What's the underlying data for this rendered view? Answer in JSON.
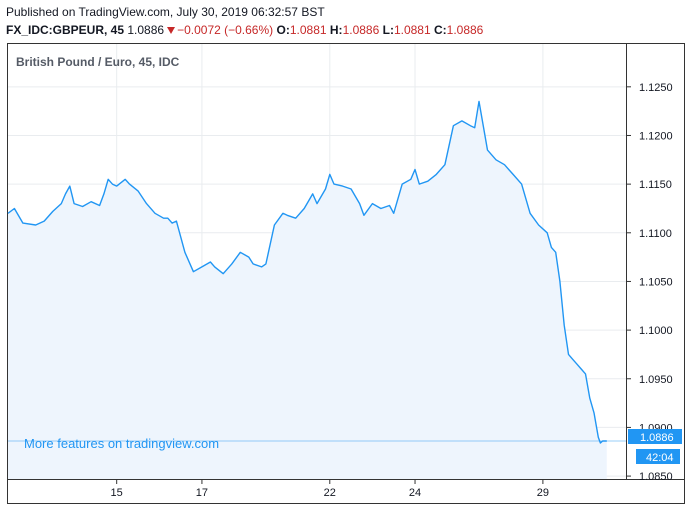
{
  "header": {
    "published": "Published on TradingView.com, July 30, 2019 06:32:57 BST",
    "symbol": "FX_IDC:GBPEUR, 45",
    "last": "1.0886",
    "change": "−0.0072 (−0.66%)",
    "o_label": "O:",
    "o_value": "1.0881",
    "h_label": "H:",
    "h_value": "1.0886",
    "l_label": "L:",
    "l_value": "1.0881",
    "c_label": "C:",
    "c_value": "1.0886"
  },
  "watermark": "More features on tradingview.com",
  "price_tag": "1.0886",
  "countdown_tag": "42:04",
  "colors": {
    "line": "#2196f3",
    "area": "#eef5fd",
    "down": "#c62828",
    "grid": "#e9ecef"
  },
  "chart_data": {
    "type": "area",
    "title": "British Pound / Euro, 45, IDC",
    "x_unit": "trading days since Jul 12, 2019",
    "x_ticks": [
      {
        "x": 2.3,
        "label": "15"
      },
      {
        "x": 4.3,
        "label": "17"
      },
      {
        "x": 7.3,
        "label": "22"
      },
      {
        "x": 9.3,
        "label": "24"
      },
      {
        "x": 12.3,
        "label": "29"
      }
    ],
    "y_ticks": [
      1.085,
      1.09,
      1.095,
      1.1,
      1.105,
      1.11,
      1.115,
      1.12,
      1.125
    ],
    "y_tick_labels": [
      "1.0850",
      "1.0900",
      "1.0950",
      "1.1000",
      "1.1050",
      "1.1100",
      "1.1150",
      "1.1200",
      "1.1250"
    ],
    "xlim": [
      -0.25,
      14.25
    ],
    "ylim": [
      1.0847,
      1.1294
    ],
    "last_value": 1.0886,
    "series": [
      {
        "name": "GBPEUR",
        "x": [
          -0.25,
          -0.1,
          0.1,
          0.4,
          0.6,
          0.8,
          1.0,
          1.1,
          1.2,
          1.3,
          1.5,
          1.7,
          1.9,
          2.0,
          2.1,
          2.2,
          2.3,
          2.5,
          2.6,
          2.8,
          3.0,
          3.2,
          3.4,
          3.5,
          3.6,
          3.7,
          3.9,
          4.1,
          4.3,
          4.5,
          4.6,
          4.8,
          5.0,
          5.2,
          5.4,
          5.5,
          5.7,
          5.8,
          6.0,
          6.2,
          6.3,
          6.5,
          6.7,
          6.9,
          7.0,
          7.2,
          7.3,
          7.4,
          7.6,
          7.8,
          8.0,
          8.1,
          8.3,
          8.5,
          8.7,
          8.8,
          9.0,
          9.2,
          9.3,
          9.4,
          9.6,
          9.8,
          10.0,
          10.2,
          10.4,
          10.6,
          10.7,
          10.8,
          11.0,
          11.2,
          11.4,
          11.6,
          11.8,
          12.0,
          12.2,
          12.4,
          12.5,
          12.6,
          12.7,
          12.8,
          12.9,
          13.0,
          13.1,
          13.2,
          13.3,
          13.4,
          13.5,
          13.6,
          13.65,
          13.7,
          13.8
        ],
        "values": [
          1.112,
          1.1125,
          1.111,
          1.1108,
          1.1112,
          1.1122,
          1.113,
          1.114,
          1.1148,
          1.113,
          1.1127,
          1.1132,
          1.1128,
          1.114,
          1.1155,
          1.115,
          1.1148,
          1.1155,
          1.115,
          1.1143,
          1.113,
          1.112,
          1.1115,
          1.1115,
          1.111,
          1.1112,
          1.108,
          1.106,
          1.1065,
          1.107,
          1.1065,
          1.1058,
          1.1068,
          1.108,
          1.1075,
          1.1068,
          1.1065,
          1.1068,
          1.1108,
          1.112,
          1.1118,
          1.1115,
          1.1125,
          1.114,
          1.113,
          1.1145,
          1.116,
          1.115,
          1.1148,
          1.1145,
          1.113,
          1.1118,
          1.113,
          1.1125,
          1.1128,
          1.112,
          1.115,
          1.1155,
          1.1165,
          1.115,
          1.1153,
          1.116,
          1.117,
          1.121,
          1.1215,
          1.121,
          1.1208,
          1.1235,
          1.1185,
          1.1175,
          1.117,
          1.116,
          1.115,
          1.112,
          1.1108,
          1.11,
          1.1085,
          1.108,
          1.105,
          1.1005,
          1.0975,
          1.097,
          1.0965,
          1.096,
          1.0955,
          1.093,
          1.0915,
          1.089,
          1.0884,
          1.0886,
          1.0886
        ]
      }
    ]
  }
}
